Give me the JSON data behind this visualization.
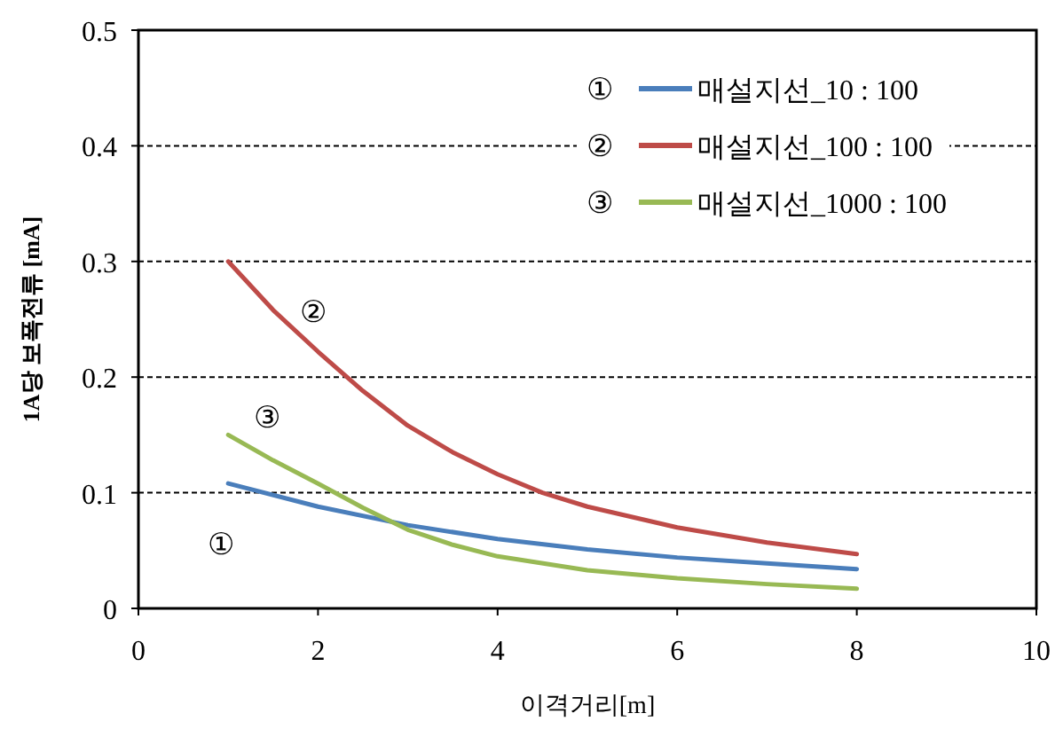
{
  "chart_data": {
    "type": "line",
    "xlabel": "이격거리[m]",
    "ylabel": "1A당 보폭전류 [mA]",
    "xlim": [
      0,
      10
    ],
    "xticks": [
      0,
      2,
      4,
      6,
      8,
      10
    ],
    "ylim": [
      0,
      0.5
    ],
    "yticks": [
      0,
      0.1,
      0.2,
      0.3,
      0.4,
      0.5
    ],
    "grid": "y",
    "legend": "top right",
    "marker": "none",
    "line_style": "solid",
    "series": [
      {
        "name": "매설지선_10 : 100",
        "color": "#4a7ebb",
        "x": [
          1,
          2,
          3,
          4,
          5,
          6,
          7,
          8
        ],
        "values": [
          0.108,
          0.088,
          0.072,
          0.06,
          0.051,
          0.044,
          0.039,
          0.034
        ]
      },
      {
        "name": "매설지선_100 : 100",
        "color": "#be4b48",
        "x": [
          1,
          1.5,
          2,
          2.5,
          3,
          3.5,
          4,
          4.5,
          5,
          6,
          7,
          8
        ],
        "values": [
          0.3,
          0.258,
          0.222,
          0.188,
          0.158,
          0.135,
          0.116,
          0.1,
          0.088,
          0.07,
          0.057,
          0.047
        ]
      },
      {
        "name": "매설지선_1000 : 100",
        "color": "#98b954",
        "x": [
          1,
          1.5,
          2,
          2.5,
          3,
          3.5,
          4,
          5,
          6,
          7,
          8
        ],
        "values": [
          0.15,
          0.128,
          0.108,
          0.087,
          0.068,
          0.055,
          0.045,
          0.033,
          0.026,
          0.021,
          0.017
        ]
      }
    ],
    "annotations": [
      "①",
      "②",
      "③",
      "①",
      "②",
      "③"
    ]
  }
}
